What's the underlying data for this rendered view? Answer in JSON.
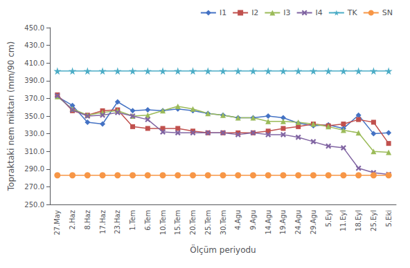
{
  "chart_data": {
    "type": "line",
    "xlabel": "Ölçüm periyodu",
    "ylabel": "Topraktaki nem miktarı (mm/90 cm)",
    "categories": [
      "27.May",
      "2.Haz",
      "8.Haz",
      "17.Haz",
      "23.Haz",
      "1.Tem",
      "6.Tem",
      "10.Tem",
      "15.Tem",
      "20.Tem",
      "25.Tem",
      "30.Tem",
      "4.Agu",
      "9.Agu",
      "14.Agu",
      "19.Agu",
      "24.Agu",
      "29.Agu",
      "5.Eyl",
      "11.Eyl",
      "18.Eyl",
      "25.Eyl",
      "5.Eki"
    ],
    "series": [
      {
        "name": "I1",
        "color": "#4472C4",
        "marker": "diamond",
        "values": [
          372,
          362,
          343,
          341,
          366,
          356,
          357,
          356,
          358,
          356,
          353,
          351,
          348,
          348,
          350,
          348,
          342,
          339,
          340,
          336,
          351,
          330,
          331
        ]
      },
      {
        "name": "I2",
        "color": "#C0504D",
        "marker": "square",
        "values": [
          374,
          356,
          351,
          356,
          357,
          338,
          336,
          336,
          336,
          333,
          331,
          331,
          331,
          331,
          333,
          336,
          338,
          341,
          339,
          341,
          346,
          343,
          319
        ]
      },
      {
        "name": "I3",
        "color": "#9BBB59",
        "marker": "triangle",
        "values": [
          372,
          358,
          351,
          354,
          356,
          350,
          351,
          356,
          361,
          358,
          353,
          351,
          348,
          348,
          344,
          344,
          343,
          341,
          338,
          334,
          331,
          310,
          309
        ]
      },
      {
        "name": "I4",
        "color": "#8064A2",
        "marker": "x",
        "values": [
          373,
          357,
          350,
          351,
          354,
          350,
          346,
          332,
          331,
          331,
          331,
          331,
          329,
          331,
          329,
          329,
          326,
          321,
          316,
          314,
          291,
          286,
          284
        ]
      },
      {
        "name": "TK",
        "color": "#4BACC6",
        "marker": "star",
        "values": [
          401,
          401,
          401,
          401,
          401,
          401,
          401,
          401,
          401,
          401,
          401,
          401,
          401,
          401,
          401,
          401,
          401,
          401,
          401,
          401,
          401,
          401,
          401
        ]
      },
      {
        "name": "SN",
        "color": "#F79646",
        "marker": "circle",
        "values": [
          283,
          283,
          283,
          283,
          283,
          283,
          283,
          283,
          283,
          283,
          283,
          283,
          283,
          283,
          283,
          283,
          283,
          283,
          283,
          283,
          283,
          283,
          283
        ]
      }
    ],
    "ylim": [
      250,
      450
    ],
    "yticks": [
      {
        "value": 250,
        "label": "250.0"
      },
      {
        "value": 270,
        "label": "270.0"
      },
      {
        "value": 290,
        "label": "290.0"
      },
      {
        "value": 310,
        "label": "310.0"
      },
      {
        "value": 330,
        "label": "330.0"
      },
      {
        "value": 350,
        "label": "350.0"
      },
      {
        "value": 370,
        "label": "370.0"
      },
      {
        "value": 390,
        "label": "390.0"
      },
      {
        "value": 410,
        "label": "410.0"
      },
      {
        "value": 430,
        "label": "430.0"
      },
      {
        "value": 450,
        "label": "450.0"
      }
    ],
    "grid": false,
    "legend": "upper right"
  }
}
